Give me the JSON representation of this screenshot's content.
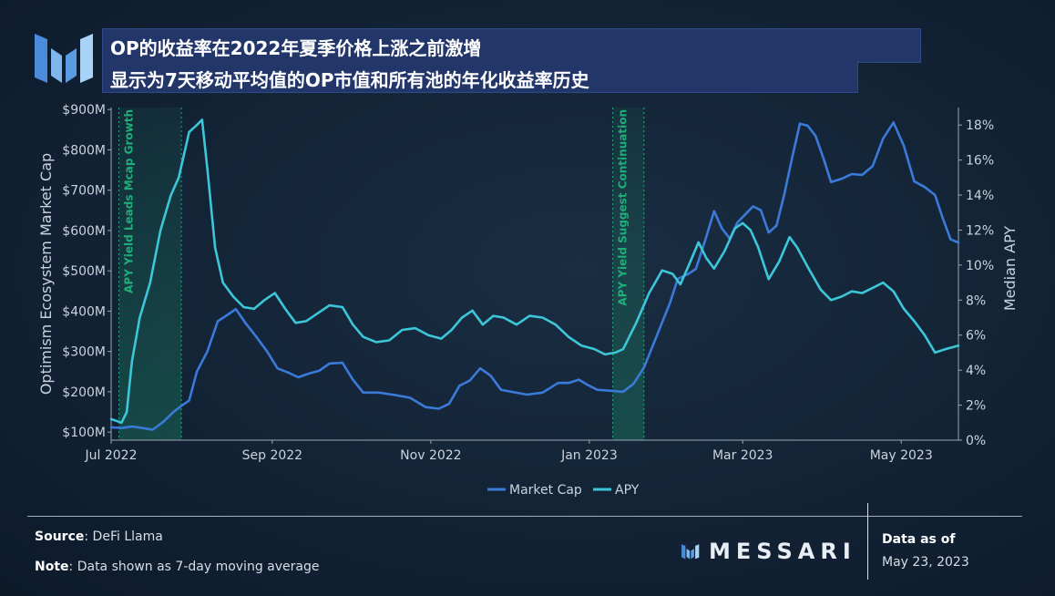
{
  "header": {
    "title": "OP的收益率在2022年夏季价格上涨之前激增",
    "subtitle": "显示为7天移动平均值的OP市值和所有池的年化收益率历史"
  },
  "colors": {
    "market_cap": "#3b7ad9",
    "apy": "#3cc6d8",
    "annotation": "#1fae78"
  },
  "chart_data": {
    "type": "line",
    "x_ticks": [
      "Jul 2022",
      "Sep 2022",
      "Nov 2022",
      "Jan 2023",
      "Mar 2023",
      "May 2023"
    ],
    "ylabel_left": "Optimism Ecosystem Market Cap",
    "ylabel_right": "Median APY",
    "y_left_ticks": [
      "$100M",
      "$200M",
      "$300M",
      "$400M",
      "$500M",
      "$600M",
      "$700M",
      "$800M",
      "$900M"
    ],
    "y_right_ticks": [
      "0%",
      "2%",
      "4%",
      "6%",
      "8%",
      "10%",
      "12%",
      "14%",
      "16%",
      "18%"
    ],
    "ylim_left": [
      80,
      905
    ],
    "ylim_right": [
      0,
      19
    ],
    "x_range": [
      "2022-07-01",
      "2023-05-23"
    ],
    "annotations": [
      {
        "label": "APY Yield Leads Mcap Growth",
        "start": "2022-07-04",
        "end": "2022-07-28"
      },
      {
        "label": "APY Yield Suggest Continuation",
        "start": "2023-01-10",
        "end": "2023-01-22"
      }
    ],
    "legend": [
      "Market Cap",
      "APY"
    ],
    "legend_position": "bottom",
    "series": [
      {
        "name": "Market Cap",
        "unit": "$M",
        "points": [
          [
            "2022-07-01",
            112
          ],
          [
            "2022-07-05",
            110
          ],
          [
            "2022-07-09",
            114
          ],
          [
            "2022-07-13",
            110
          ],
          [
            "2022-07-17",
            106
          ],
          [
            "2022-07-21",
            125
          ],
          [
            "2022-07-25",
            150
          ],
          [
            "2022-07-28",
            165
          ],
          [
            "2022-07-31",
            178
          ],
          [
            "2022-08-03",
            250
          ],
          [
            "2022-08-07",
            300
          ],
          [
            "2022-08-11",
            375
          ],
          [
            "2022-08-15",
            392
          ],
          [
            "2022-08-18",
            405
          ],
          [
            "2022-08-22",
            368
          ],
          [
            "2022-08-26",
            335
          ],
          [
            "2022-08-30",
            300
          ],
          [
            "2022-09-03",
            258
          ],
          [
            "2022-09-07",
            248
          ],
          [
            "2022-09-11",
            236
          ],
          [
            "2022-09-15",
            245
          ],
          [
            "2022-09-19",
            252
          ],
          [
            "2022-09-23",
            270
          ],
          [
            "2022-09-28",
            272
          ],
          [
            "2022-10-02",
            230
          ],
          [
            "2022-10-06",
            198
          ],
          [
            "2022-10-12",
            198
          ],
          [
            "2022-10-18",
            192
          ],
          [
            "2022-10-24",
            185
          ],
          [
            "2022-10-30",
            162
          ],
          [
            "2022-11-04",
            158
          ],
          [
            "2022-11-08",
            170
          ],
          [
            "2022-11-12",
            215
          ],
          [
            "2022-11-16",
            228
          ],
          [
            "2022-11-20",
            258
          ],
          [
            "2022-11-24",
            240
          ],
          [
            "2022-11-28",
            205
          ],
          [
            "2022-12-02",
            200
          ],
          [
            "2022-12-08",
            193
          ],
          [
            "2022-12-14",
            198
          ],
          [
            "2022-12-20",
            222
          ],
          [
            "2022-12-24",
            222
          ],
          [
            "2022-12-28",
            230
          ],
          [
            "2022-12-31",
            218
          ],
          [
            "2023-01-04",
            205
          ],
          [
            "2023-01-10",
            202
          ],
          [
            "2023-01-14",
            200
          ],
          [
            "2023-01-18",
            220
          ],
          [
            "2023-01-22",
            260
          ],
          [
            "2023-01-27",
            340
          ],
          [
            "2023-02-01",
            420
          ],
          [
            "2023-02-04",
            480
          ],
          [
            "2023-02-08",
            492
          ],
          [
            "2023-02-11",
            505
          ],
          [
            "2023-02-15",
            585
          ],
          [
            "2023-02-18",
            648
          ],
          [
            "2023-02-21",
            605
          ],
          [
            "2023-02-24",
            580
          ],
          [
            "2023-02-27",
            620
          ],
          [
            "2023-03-02",
            640
          ],
          [
            "2023-03-05",
            660
          ],
          [
            "2023-03-08",
            650
          ],
          [
            "2023-03-11",
            595
          ],
          [
            "2023-03-14",
            612
          ],
          [
            "2023-03-17",
            690
          ],
          [
            "2023-03-20",
            780
          ],
          [
            "2023-03-23",
            865
          ],
          [
            "2023-03-26",
            860
          ],
          [
            "2023-03-29",
            835
          ],
          [
            "2023-04-01",
            780
          ],
          [
            "2023-04-04",
            720
          ],
          [
            "2023-04-08",
            728
          ],
          [
            "2023-04-12",
            740
          ],
          [
            "2023-04-16",
            738
          ],
          [
            "2023-04-20",
            760
          ],
          [
            "2023-04-24",
            828
          ],
          [
            "2023-04-28",
            868
          ],
          [
            "2023-05-02",
            810
          ],
          [
            "2023-05-06",
            722
          ],
          [
            "2023-05-10",
            708
          ],
          [
            "2023-05-14",
            688
          ],
          [
            "2023-05-17",
            630
          ],
          [
            "2023-05-20",
            578
          ],
          [
            "2023-05-23",
            570
          ]
        ]
      },
      {
        "name": "APY",
        "unit": "%",
        "points": [
          [
            "2022-07-01",
            1.2
          ],
          [
            "2022-07-05",
            1.0
          ],
          [
            "2022-07-07",
            1.6
          ],
          [
            "2022-07-09",
            4.5
          ],
          [
            "2022-07-12",
            7.0
          ],
          [
            "2022-07-16",
            9.0
          ],
          [
            "2022-07-20",
            12.0
          ],
          [
            "2022-07-24",
            14.0
          ],
          [
            "2022-07-27",
            15.0
          ],
          [
            "2022-07-31",
            17.6
          ],
          [
            "2022-08-03",
            18.0
          ],
          [
            "2022-08-05",
            18.3
          ],
          [
            "2022-08-07",
            15.5
          ],
          [
            "2022-08-10",
            11.0
          ],
          [
            "2022-08-13",
            9.0
          ],
          [
            "2022-08-17",
            8.2
          ],
          [
            "2022-08-21",
            7.6
          ],
          [
            "2022-08-25",
            7.5
          ],
          [
            "2022-08-29",
            8.0
          ],
          [
            "2022-09-02",
            8.4
          ],
          [
            "2022-09-06",
            7.5
          ],
          [
            "2022-09-10",
            6.7
          ],
          [
            "2022-09-14",
            6.8
          ],
          [
            "2022-09-18",
            7.2
          ],
          [
            "2022-09-23",
            7.7
          ],
          [
            "2022-09-28",
            7.6
          ],
          [
            "2022-10-02",
            6.6
          ],
          [
            "2022-10-06",
            5.9
          ],
          [
            "2022-10-11",
            5.6
          ],
          [
            "2022-10-16",
            5.7
          ],
          [
            "2022-10-21",
            6.3
          ],
          [
            "2022-10-26",
            6.4
          ],
          [
            "2022-10-31",
            6.0
          ],
          [
            "2022-11-05",
            5.8
          ],
          [
            "2022-11-09",
            6.3
          ],
          [
            "2022-11-13",
            7.0
          ],
          [
            "2022-11-17",
            7.4
          ],
          [
            "2022-11-21",
            6.6
          ],
          [
            "2022-11-25",
            7.1
          ],
          [
            "2022-11-29",
            7.0
          ],
          [
            "2022-12-04",
            6.6
          ],
          [
            "2022-12-09",
            7.1
          ],
          [
            "2022-12-14",
            7.0
          ],
          [
            "2022-12-19",
            6.6
          ],
          [
            "2022-12-24",
            5.9
          ],
          [
            "2022-12-29",
            5.4
          ],
          [
            "2023-01-03",
            5.2
          ],
          [
            "2023-01-07",
            4.9
          ],
          [
            "2023-01-11",
            5.0
          ],
          [
            "2023-01-14",
            5.2
          ],
          [
            "2023-01-19",
            6.7
          ],
          [
            "2023-01-24",
            8.4
          ],
          [
            "2023-01-29",
            9.7
          ],
          [
            "2023-02-02",
            9.5
          ],
          [
            "2023-02-05",
            8.9
          ],
          [
            "2023-02-08",
            9.9
          ],
          [
            "2023-02-12",
            11.3
          ],
          [
            "2023-02-15",
            10.4
          ],
          [
            "2023-02-18",
            9.8
          ],
          [
            "2023-02-22",
            10.8
          ],
          [
            "2023-02-26",
            12.1
          ],
          [
            "2023-03-01",
            12.4
          ],
          [
            "2023-03-04",
            12.0
          ],
          [
            "2023-03-07",
            11.0
          ],
          [
            "2023-03-11",
            9.2
          ],
          [
            "2023-03-15",
            10.2
          ],
          [
            "2023-03-19",
            11.6
          ],
          [
            "2023-03-22",
            11.0
          ],
          [
            "2023-03-26",
            9.9
          ],
          [
            "2023-03-31",
            8.6
          ],
          [
            "2023-04-04",
            8.0
          ],
          [
            "2023-04-08",
            8.2
          ],
          [
            "2023-04-12",
            8.5
          ],
          [
            "2023-04-16",
            8.4
          ],
          [
            "2023-04-20",
            8.7
          ],
          [
            "2023-04-24",
            9.0
          ],
          [
            "2023-04-28",
            8.5
          ],
          [
            "2023-05-02",
            7.5
          ],
          [
            "2023-05-06",
            6.8
          ],
          [
            "2023-05-10",
            6.0
          ],
          [
            "2023-05-14",
            5.0
          ],
          [
            "2023-05-18",
            5.2
          ],
          [
            "2023-05-23",
            5.4
          ]
        ]
      }
    ]
  },
  "footer": {
    "source_label": "Source",
    "source_value": "DeFi Llama",
    "note_label": "Note",
    "note_value": "Data shown as 7-day moving average",
    "brand": "MESSARI",
    "data_as_of_label": "Data as of",
    "data_as_of_value": "May 23, 2023"
  }
}
